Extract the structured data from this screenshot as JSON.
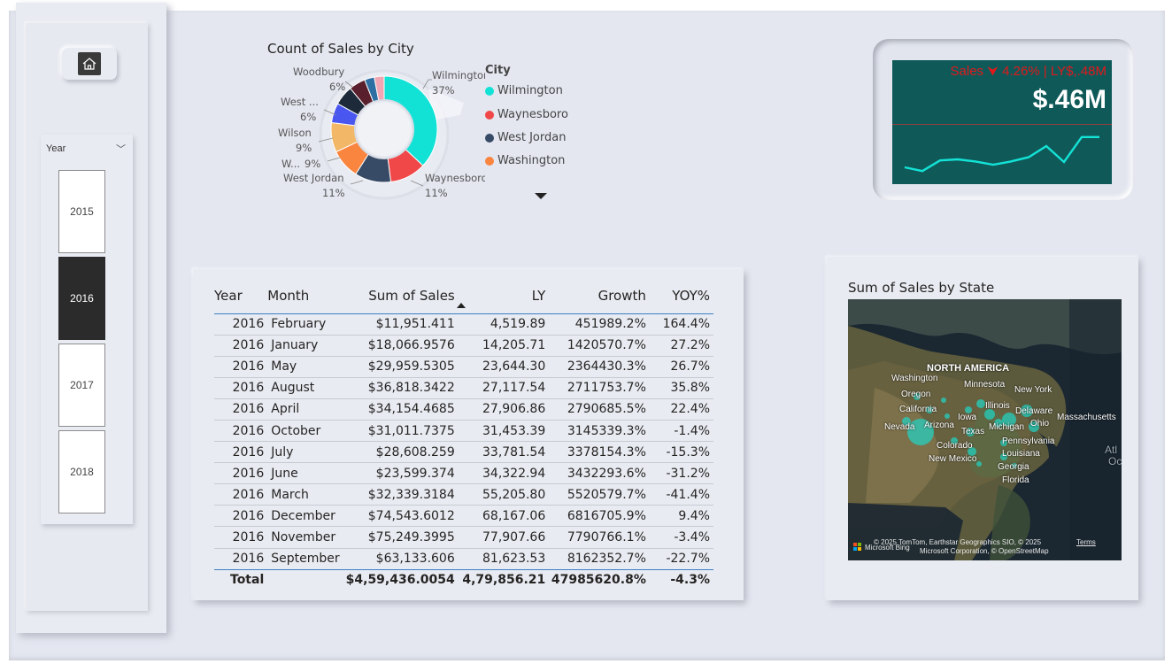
{
  "slicer": {
    "title": "Year",
    "years": [
      "2015",
      "2016",
      "2017",
      "2018"
    ],
    "selected": "2016"
  },
  "donut": {
    "title": "Count of Sales by City",
    "legend_title": "City",
    "legend": [
      "Wilmington",
      "Waynesboro",
      "West Jordan",
      "Washington"
    ],
    "colors": {
      "Wilmington": "#12e2d6",
      "Waynesboro": "#f04848",
      "West Jordan": "#374a66",
      "Washington": "#f9853f"
    },
    "labels": [
      {
        "name": "Wilmington",
        "pct": "37%"
      },
      {
        "name": "Waynesboro",
        "pct": "11%"
      },
      {
        "name": "West Jordan",
        "pct": "11%"
      },
      {
        "name": "W...",
        "pct": "9%"
      },
      {
        "name": "Wilson",
        "pct": "9%"
      },
      {
        "name": "West ...",
        "pct": "6%"
      },
      {
        "name": "Woodbury",
        "pct": "6%"
      }
    ]
  },
  "kpi": {
    "header": "Sales ⮟ 4.26% | LY$,.48M",
    "value": "$.46M",
    "trend": [
      0.25,
      0.18,
      0.38,
      0.4,
      0.36,
      0.3,
      0.36,
      0.44,
      0.65,
      0.35,
      0.82,
      0.82
    ]
  },
  "table": {
    "headers": [
      "Year",
      "Month",
      "Sum of Sales",
      "LY",
      "Growth",
      "YOY%"
    ],
    "rows": [
      [
        "2016",
        "February",
        "$11,951.411",
        "4,519.89",
        "451989.2%",
        "164.4%"
      ],
      [
        "2016",
        "January",
        "$18,066.9576",
        "14,205.71",
        "1420570.7%",
        "27.2%"
      ],
      [
        "2016",
        "May",
        "$29,959.5305",
        "23,644.30",
        "2364430.3%",
        "26.7%"
      ],
      [
        "2016",
        "August",
        "$36,818.3422",
        "27,117.54",
        "2711753.7%",
        "35.8%"
      ],
      [
        "2016",
        "April",
        "$34,154.4685",
        "27,906.86",
        "2790685.5%",
        "22.4%"
      ],
      [
        "2016",
        "October",
        "$31,011.7375",
        "31,453.39",
        "3145339.3%",
        "-1.4%"
      ],
      [
        "2016",
        "July",
        "$28,608.259",
        "33,781.54",
        "3378154.3%",
        "-15.3%"
      ],
      [
        "2016",
        "June",
        "$23,599.374",
        "34,322.94",
        "3432293.6%",
        "-31.2%"
      ],
      [
        "2016",
        "March",
        "$32,339.3184",
        "55,205.80",
        "5520579.7%",
        "-41.4%"
      ],
      [
        "2016",
        "December",
        "$74,543.6012",
        "68,167.06",
        "6816705.9%",
        "9.4%"
      ],
      [
        "2016",
        "November",
        "$75,249.3995",
        "77,907.66",
        "7790766.1%",
        "-3.4%"
      ],
      [
        "2016",
        "September",
        "$63,133.606",
        "81,623.53",
        "8162352.7%",
        "-22.7%"
      ]
    ],
    "total": [
      "Total",
      "",
      "$4,59,436.0054",
      "4,79,856.21",
      "47985620.8%",
      "-4.3%"
    ]
  },
  "map": {
    "title": "Sum of Sales by State",
    "continent": "NORTH AMERICA",
    "states": [
      "Washington",
      "Minnesota",
      "Oregon",
      "New York",
      "California",
      "Illinois",
      "Delaware",
      "Massachusetts",
      "Iowa",
      "Ohio",
      "Nevada",
      "Arizona",
      "Michigan",
      "Texas",
      "Pennsylvania",
      "Colorado",
      "Louisiana",
      "New Mexico",
      "Georgia",
      "Florida"
    ],
    "ocean": [
      "Atl",
      "Oc"
    ],
    "attribution_1": "© 2025 TomTom, Earthstar Geographics SIO, © 2025",
    "attribution_terms": "Terms",
    "attribution_2": "Microsoft Corporation, © OpenStreetMap",
    "bing": "Microsoft Bing"
  }
}
